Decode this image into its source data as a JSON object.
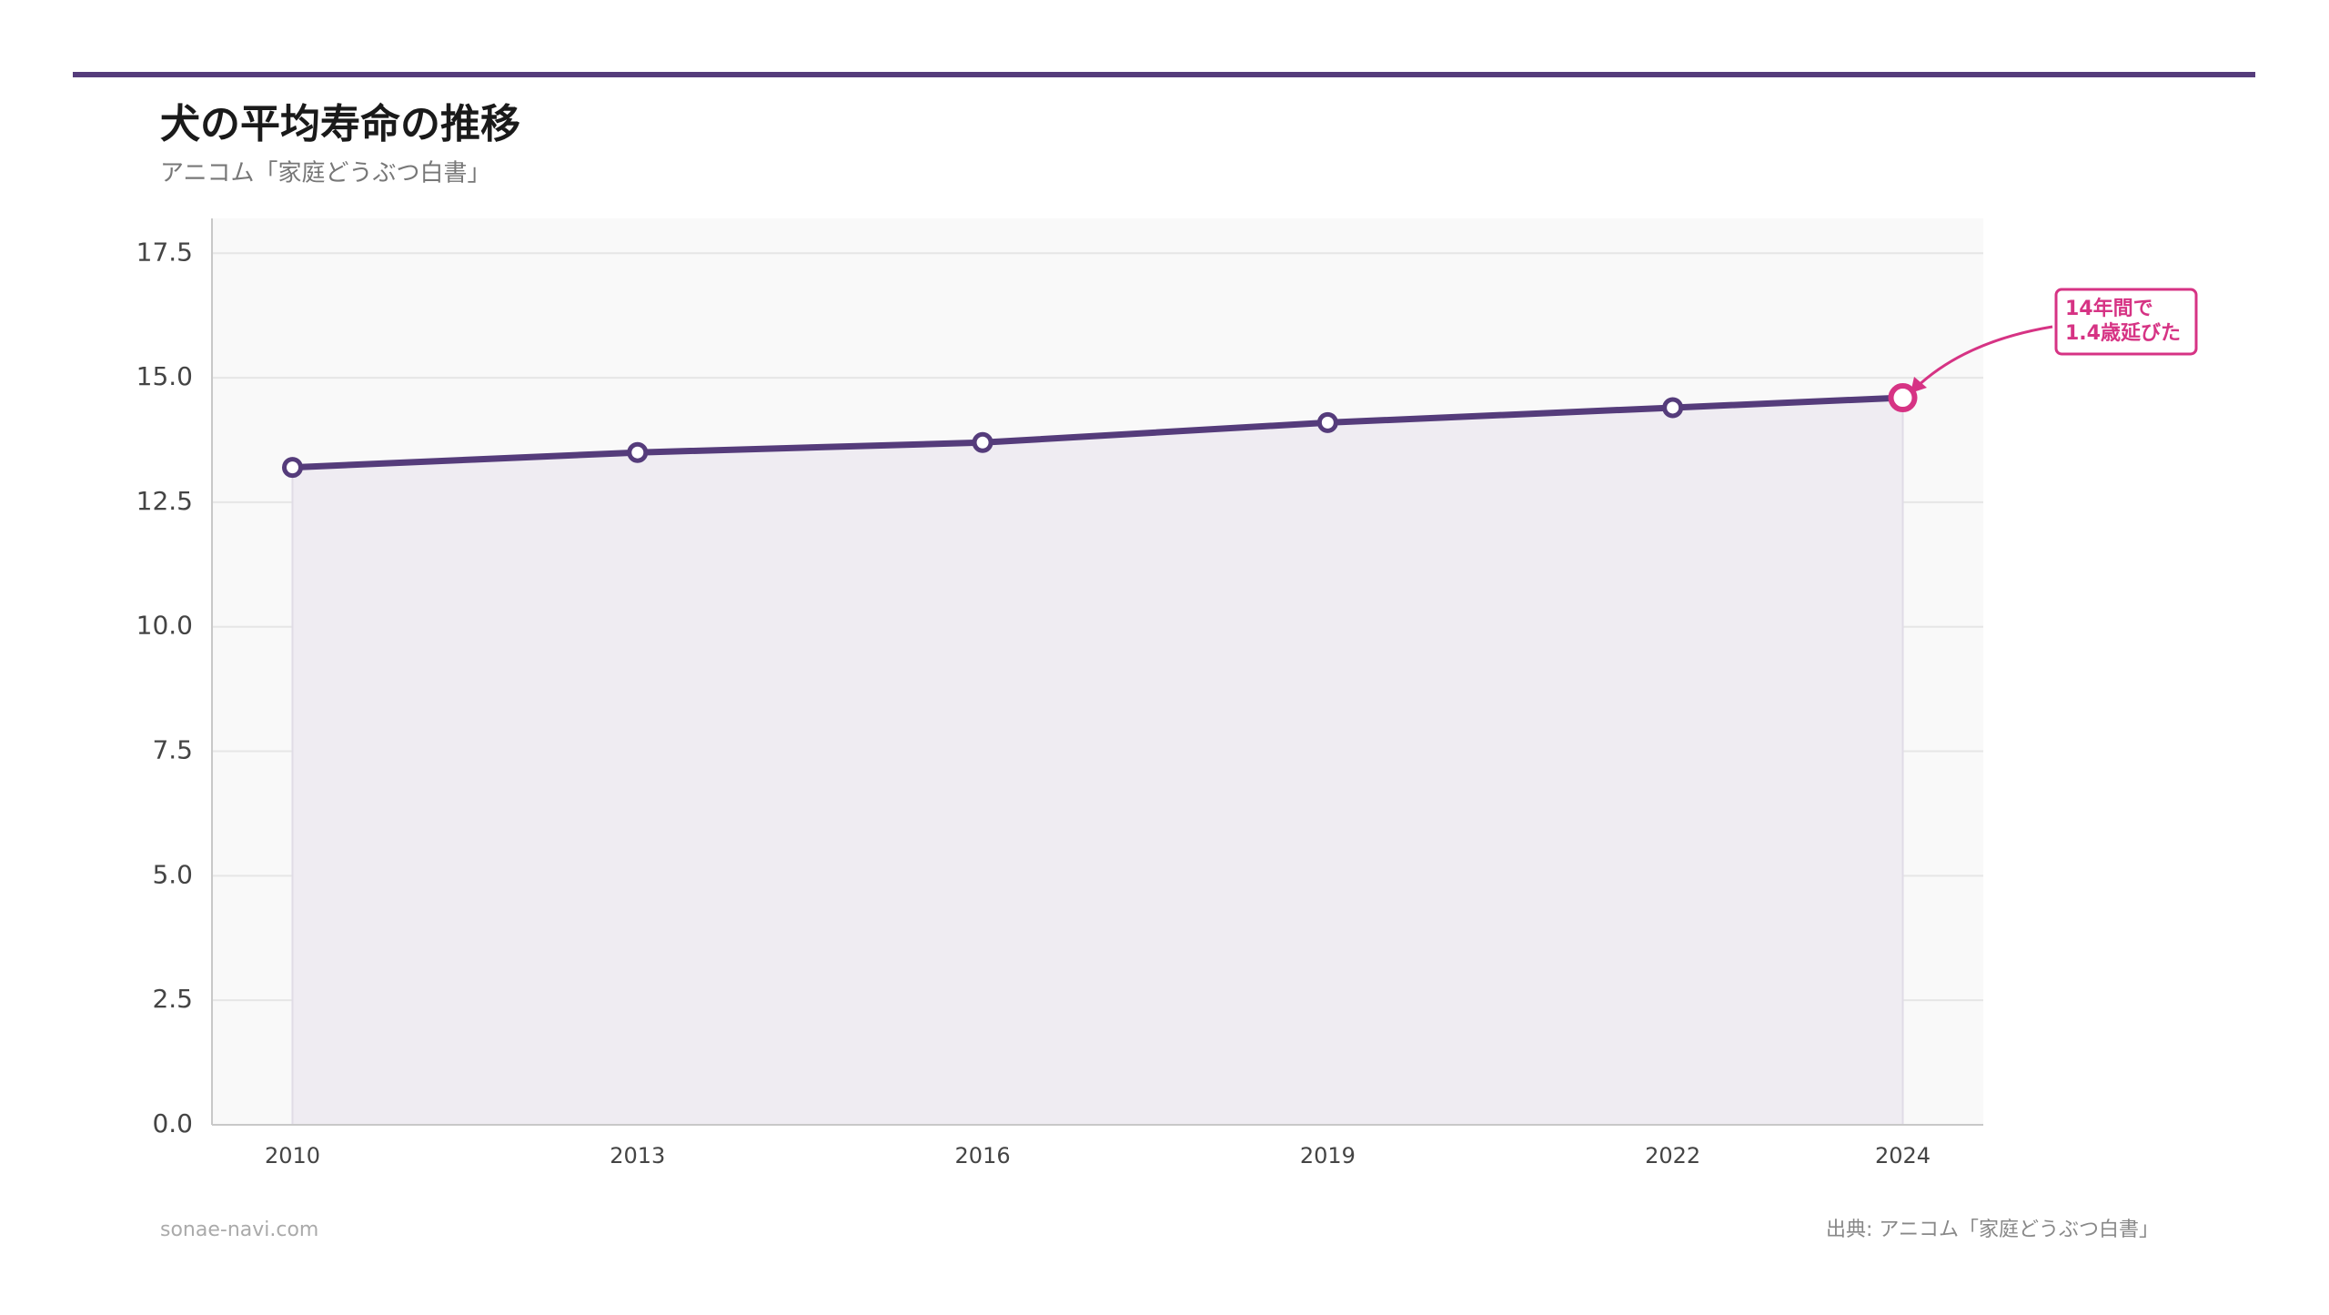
{
  "chart_data": {
    "type": "line",
    "title": "犬の平均寿命の推移",
    "subtitle": "アニコム「家庭どうぶつ白書」",
    "x": [
      2010,
      2013,
      2016,
      2019,
      2022,
      2024
    ],
    "series": [
      {
        "color": "#553c7b",
        "values": [
          13.2,
          13.5,
          13.7,
          14.1,
          14.4,
          14.6
        ]
      }
    ],
    "area_color": "#efecf2",
    "highlight_color": "#d63384",
    "xlim": [
      2009.3,
      2024.7
    ],
    "xticks": [
      2010,
      2013,
      2016,
      2019,
      2022,
      2024
    ],
    "ylim": [
      0,
      18.2
    ],
    "yticks": [
      {
        "value": 0,
        "label": "0.0"
      },
      {
        "value": 2.5,
        "label": "2.5"
      },
      {
        "value": 5,
        "label": "5.0"
      },
      {
        "value": 7.5,
        "label": "7.5"
      },
      {
        "value": 10,
        "label": "10.0"
      },
      {
        "value": 12.5,
        "label": "12.5"
      },
      {
        "value": 15,
        "label": "15.0"
      },
      {
        "value": 17.5,
        "label": "17.5"
      }
    ],
    "grid": true,
    "annotation": [
      "14年間で",
      "1.4歳延びた"
    ],
    "footer_left": "sonae-navi.com",
    "footer_right": "出典: アニコム「家庭どうぶつ白書」"
  }
}
